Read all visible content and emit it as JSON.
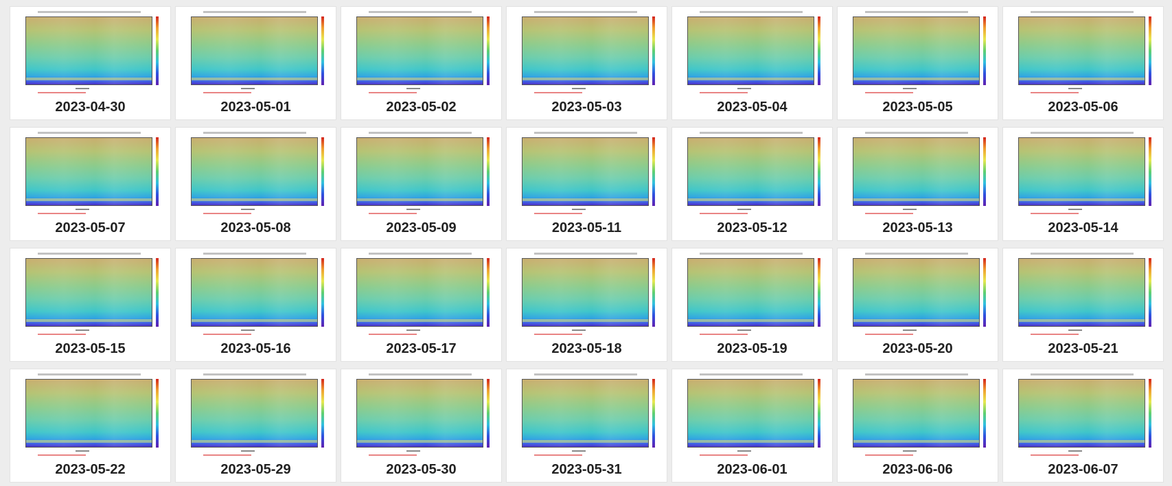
{
  "cards": [
    {
      "label": "2023-04-30"
    },
    {
      "label": "2023-05-01"
    },
    {
      "label": "2023-05-02"
    },
    {
      "label": "2023-05-03"
    },
    {
      "label": "2023-05-04"
    },
    {
      "label": "2023-05-05"
    },
    {
      "label": "2023-05-06"
    },
    {
      "label": "2023-05-07"
    },
    {
      "label": "2023-05-08"
    },
    {
      "label": "2023-05-09"
    },
    {
      "label": "2023-05-11"
    },
    {
      "label": "2023-05-12"
    },
    {
      "label": "2023-05-13"
    },
    {
      "label": "2023-05-14"
    },
    {
      "label": "2023-05-15"
    },
    {
      "label": "2023-05-16"
    },
    {
      "label": "2023-05-17"
    },
    {
      "label": "2023-05-18"
    },
    {
      "label": "2023-05-19"
    },
    {
      "label": "2023-05-20"
    },
    {
      "label": "2023-05-21"
    },
    {
      "label": "2023-05-22"
    },
    {
      "label": "2023-05-29"
    },
    {
      "label": "2023-05-30"
    },
    {
      "label": "2023-05-31"
    },
    {
      "label": "2023-06-01"
    },
    {
      "label": "2023-06-06"
    },
    {
      "label": "2023-06-07"
    }
  ]
}
